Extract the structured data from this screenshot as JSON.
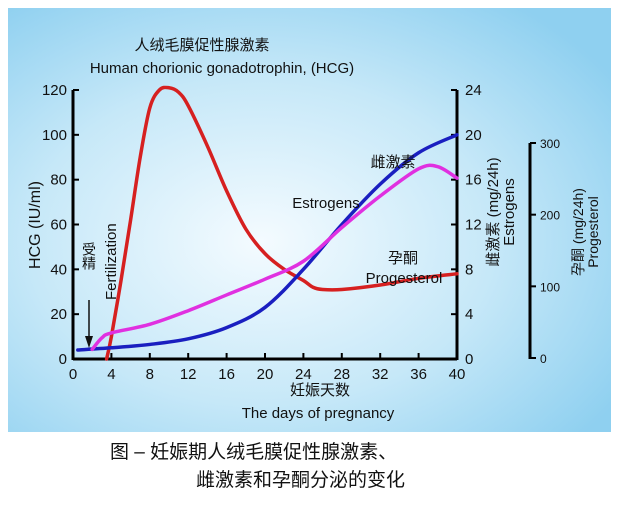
{
  "chart_data": {
    "type": "line",
    "title_cn": "人绒毛膜促性腺激素",
    "title_en": "Human chorionic gonadotrophin,  (HCG)",
    "xlabel_cn": "妊娠天数",
    "xlabel_en": "The days of pregnancy",
    "xlim": [
      0,
      40
    ],
    "xticks": [
      0,
      4,
      8,
      12,
      16,
      20,
      24,
      28,
      32,
      36,
      40
    ],
    "axes": [
      {
        "id": "hcg",
        "label": "HCG (IU/ml)",
        "range": [
          0,
          120
        ],
        "ticks": [
          0,
          20,
          40,
          60,
          80,
          100,
          120
        ],
        "position": "left"
      },
      {
        "id": "estrogen",
        "label_cn": "雌激素 (mg/24h)",
        "label_en": "Estrogens",
        "range": [
          0,
          24
        ],
        "ticks": [
          0,
          4,
          8,
          12,
          16,
          20,
          24
        ],
        "position": "right"
      },
      {
        "id": "progesterone",
        "label_cn": "孕酮 (mg/24h)",
        "label_en": "Progesterol",
        "range": [
          0,
          300
        ],
        "ticks": [
          0,
          100,
          200,
          300
        ],
        "position": "far-right"
      }
    ],
    "series": [
      {
        "name": "HCG",
        "axis": "hcg",
        "color": "#d62020",
        "x": [
          3.5,
          4,
          5,
          6,
          7,
          8,
          9,
          10,
          11,
          12,
          14,
          16,
          18,
          20,
          22,
          24,
          25,
          26,
          28,
          32,
          36,
          40
        ],
        "y": [
          0,
          10,
          35,
          62,
          90,
          112,
          120,
          121,
          119,
          113,
          95,
          75,
          58,
          47,
          40,
          35,
          32,
          31,
          31,
          33,
          36,
          38
        ]
      },
      {
        "name_cn": "雌激素",
        "name": "Estrogens",
        "axis": "estrogen",
        "color": "#1a1fc0",
        "x": [
          0.5,
          4,
          8,
          12,
          16,
          20,
          24,
          28,
          32,
          36,
          40
        ],
        "y": [
          0.8,
          1.0,
          1.3,
          1.8,
          2.8,
          4.6,
          8.0,
          12.0,
          15.6,
          18.4,
          20.0
        ]
      },
      {
        "name_cn": "孕酮",
        "name": "Progesterol",
        "axis": "progesterone",
        "color": "#e030e0",
        "x": [
          2,
          3,
          4,
          8,
          12,
          16,
          20,
          24,
          28,
          32,
          36,
          38,
          40
        ],
        "y": [
          12,
          28,
          35,
          47,
          66,
          88,
          110,
          135,
          182,
          226,
          264,
          267,
          251
        ]
      }
    ],
    "annotations": {
      "fertilization_cn": "受精",
      "fertilization_en": "Fertilization",
      "fertilization_day": 1.5
    },
    "grid": false,
    "legend": "inline labels"
  },
  "caption": {
    "line1": "图  –  妊娠期人绒毛膜促性腺激素、",
    "line2": "雌激素和孕酮分泌的变化"
  }
}
